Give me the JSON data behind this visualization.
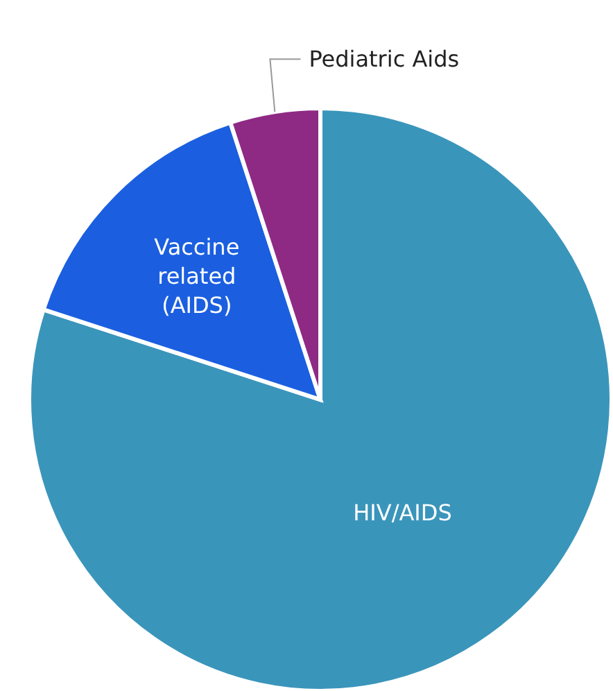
{
  "chart_data": {
    "type": "pie",
    "categories": [
      "HIV/AIDS",
      "Vaccine related (AIDS)",
      "Pediatric Aids"
    ],
    "values": [
      80,
      15,
      5
    ],
    "colors": [
      "#3a95bb",
      "#1b5fe0",
      "#8e2a84"
    ],
    "legend": false
  }
}
